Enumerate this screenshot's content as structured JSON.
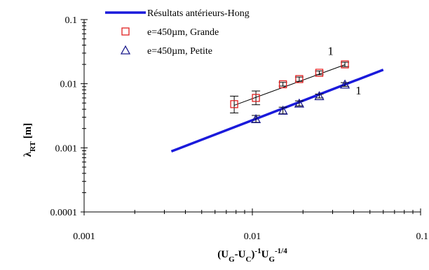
{
  "chart_data": {
    "type": "scatter",
    "title": "",
    "x_scale": "log",
    "y_scale": "log",
    "xlim": [
      0.001,
      0.1
    ],
    "ylim": [
      0.0001,
      0.1
    ],
    "x_ticks": [
      0.001,
      0.01,
      0.1
    ],
    "x_tick_labels": [
      "0.001",
      "0.01",
      "0.1"
    ],
    "y_ticks": [
      0.0001,
      0.001,
      0.01,
      0.1
    ],
    "y_tick_labels": [
      "0.0001",
      "0.001",
      "0.01",
      "0.1"
    ],
    "xlabel": {
      "parts": [
        {
          "t": "(U",
          "s": "n"
        },
        {
          "t": "G",
          "s": "sub"
        },
        {
          "t": "-U",
          "s": "n"
        },
        {
          "t": "C",
          "s": "sub"
        },
        {
          "t": ")",
          "s": "n"
        },
        {
          "t": "-1",
          "s": "sup"
        },
        {
          "t": "U",
          "s": "n"
        },
        {
          "t": "G",
          "s": "sub"
        },
        {
          "t": "-1/4",
          "s": "sup"
        }
      ]
    },
    "ylabel": {
      "parts": [
        {
          "t": "λ",
          "s": "n"
        },
        {
          "t": "RT",
          "s": "sub"
        },
        {
          "t": " [m]",
          "s": "n"
        }
      ]
    },
    "grid": false,
    "legend_position": "top-left",
    "series": [
      {
        "name": "Résultats antérieurs-Hong",
        "kind": "line",
        "color": "#1a1adb",
        "x": [
          0.0033,
          0.06
        ],
        "y": [
          0.00088,
          0.0165
        ]
      },
      {
        "name": "e=450µm, Grande",
        "kind": "marker",
        "marker": "square",
        "color": "#e02020",
        "x": [
          0.0078,
          0.0105,
          0.0152,
          0.019,
          0.025,
          0.0355
        ],
        "y": [
          0.0048,
          0.006,
          0.0098,
          0.0118,
          0.0148,
          0.02
        ],
        "err_low": [
          0.0035,
          0.0047,
          0.0092,
          0.0109,
          0.0138,
          0.0185
        ],
        "err_high": [
          0.0064,
          0.0077,
          0.0105,
          0.0127,
          0.0158,
          0.0216
        ]
      },
      {
        "name": "e=450µm, Petite",
        "kind": "marker",
        "marker": "triangle",
        "color": "#1a1a8c",
        "x": [
          0.0105,
          0.0152,
          0.019,
          0.025,
          0.0355
        ],
        "y": [
          0.0028,
          0.0038,
          0.0049,
          0.0064,
          0.0097
        ],
        "err_low": [
          0.0025,
          0.0034,
          0.0045,
          0.006,
          0.0091
        ],
        "err_high": [
          0.0032,
          0.0043,
          0.0054,
          0.0069,
          0.0104
        ]
      }
    ],
    "fit_lines": [
      {
        "x": [
          0.0078,
          0.0355
        ],
        "y": [
          0.0046,
          0.0198
        ]
      },
      {
        "x": [
          0.0105,
          0.0355
        ],
        "y": [
          0.0028,
          0.0095
        ]
      }
    ],
    "annotations": [
      {
        "text": "1",
        "x": 0.028,
        "y": 0.028
      },
      {
        "text": "1",
        "x": 0.041,
        "y": 0.0068
      }
    ]
  }
}
